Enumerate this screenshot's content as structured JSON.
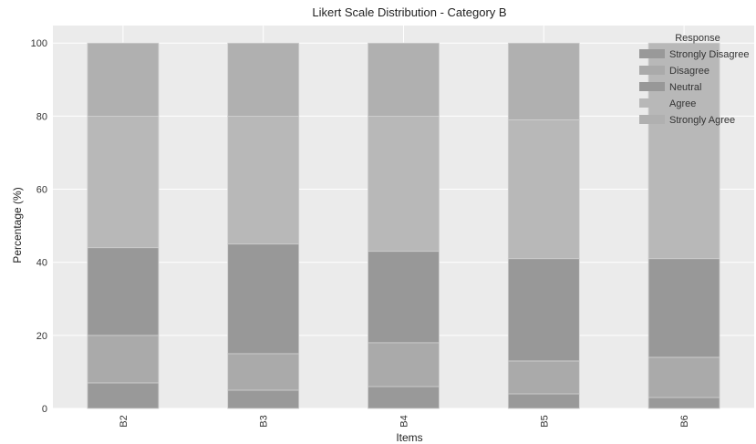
{
  "chart_data": {
    "type": "bar",
    "stacked": true,
    "title": "Likert Scale Distribution - Category B",
    "xlabel": "Items",
    "ylabel": "Percentage (%)",
    "ylim": [
      0,
      100
    ],
    "yticks": [
      0,
      20,
      40,
      60,
      80,
      100
    ],
    "grid": true,
    "categories": [
      "B2",
      "B3",
      "B4",
      "B5",
      "B6"
    ],
    "legend": {
      "title": "Response",
      "placement": "top-right"
    },
    "series": [
      {
        "name": "Strongly Disagree",
        "color": "#999999",
        "values": [
          7,
          5,
          6,
          4,
          3
        ]
      },
      {
        "name": "Disagree",
        "color": "#aaaaaa",
        "values": [
          13,
          10,
          12,
          9,
          11
        ]
      },
      {
        "name": "Neutral",
        "color": "#989898",
        "values": [
          24,
          30,
          25,
          28,
          27
        ]
      },
      {
        "name": "Agree",
        "color": "#b8b8b8",
        "values": [
          36,
          35,
          37,
          38,
          59
        ]
      },
      {
        "name": "Strongly Agree",
        "color": "#b0b0b0",
        "values": [
          20,
          20,
          20,
          21,
          0
        ]
      }
    ]
  }
}
